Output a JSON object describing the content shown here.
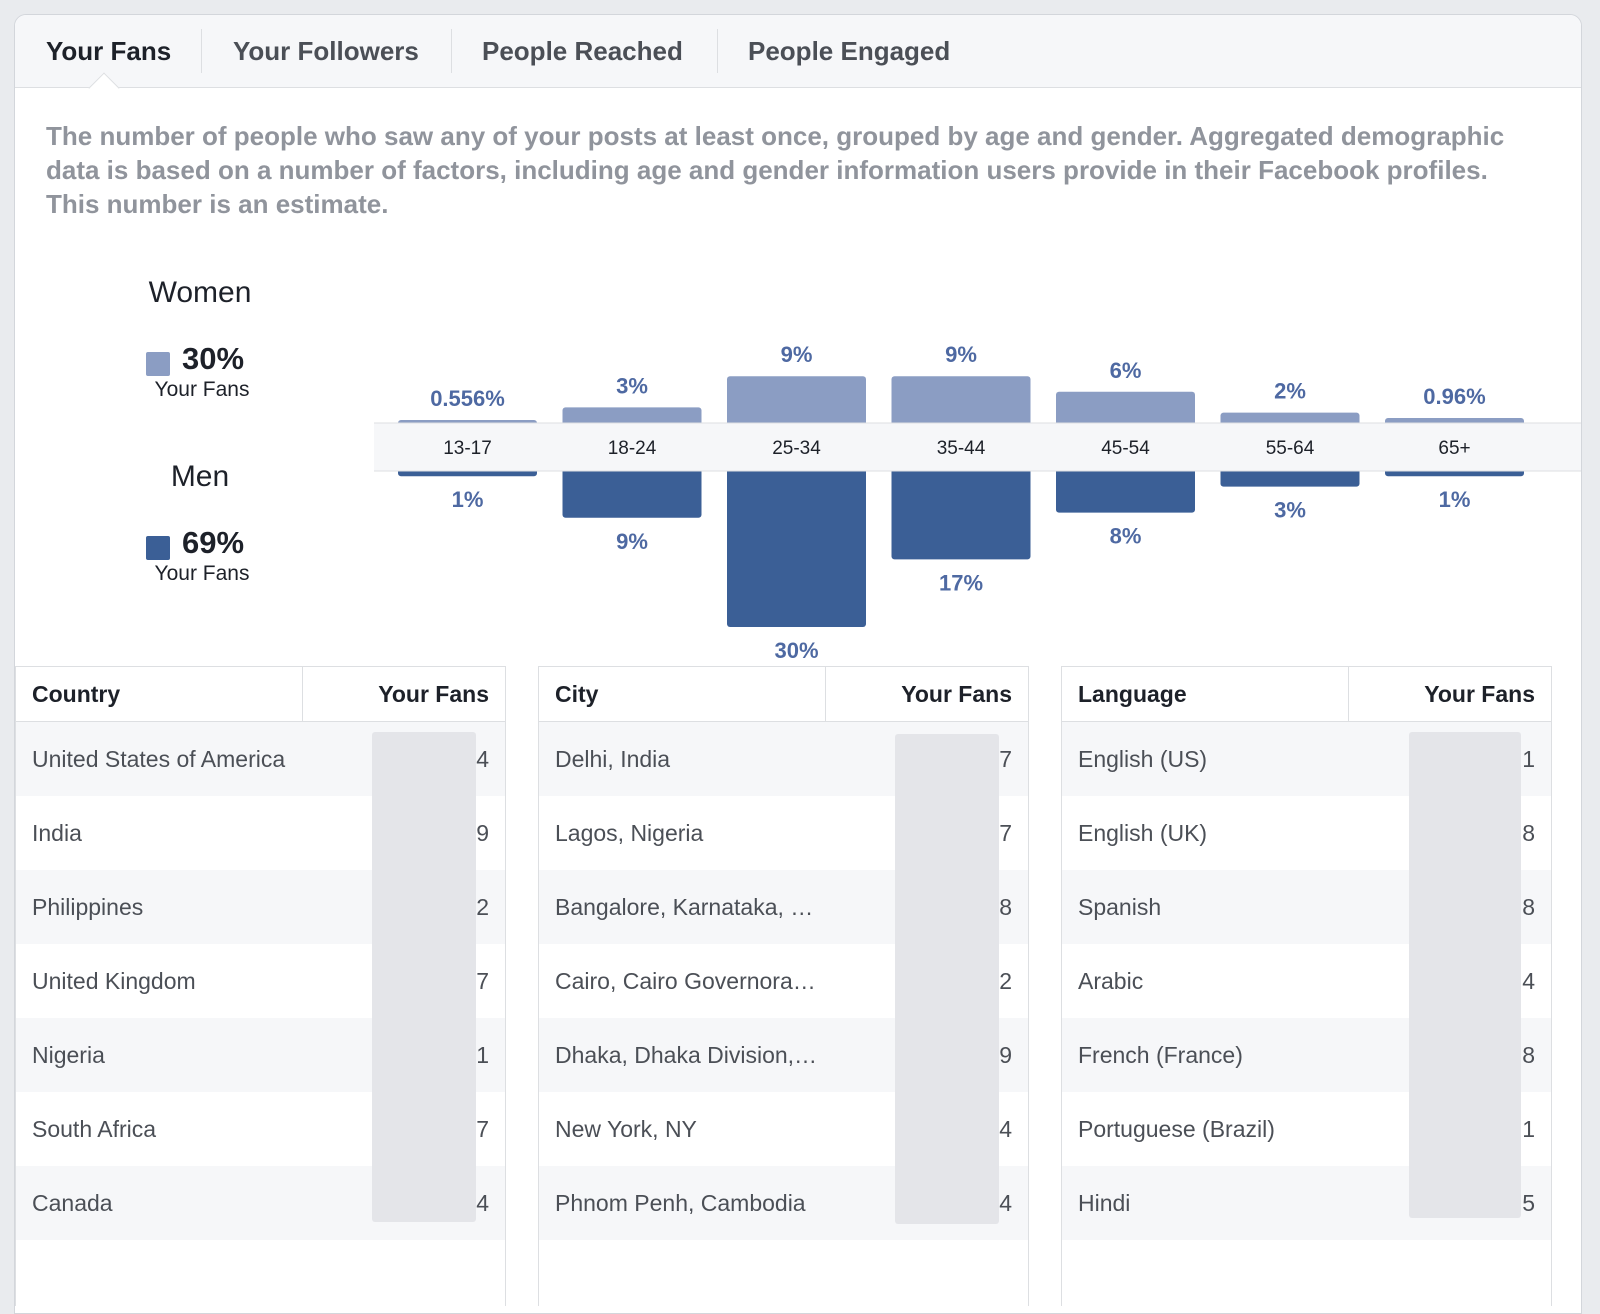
{
  "tabs": [
    {
      "label": "Your Fans",
      "active": true
    },
    {
      "label": "Your Followers",
      "active": false
    },
    {
      "label": "People Reached",
      "active": false
    },
    {
      "label": "People Engaged",
      "active": false
    }
  ],
  "description": "The number of people who saw any of your posts at least once, grouped by age and gender. Aggregated demographic data is based on a number of factors, including age and gender information users provide in their Facebook profiles. This number is an estimate.",
  "legend": {
    "women": {
      "title": "Women",
      "percent": "30%",
      "sub": "Your Fans",
      "color": "#8b9dc3"
    },
    "men": {
      "title": "Men",
      "percent": "69%",
      "sub": "Your Fans",
      "color": "#3b5f96"
    }
  },
  "chart_data": {
    "type": "bar",
    "categories": [
      "13-17",
      "18-24",
      "25-34",
      "35-44",
      "45-54",
      "55-64",
      "65+"
    ],
    "series": [
      {
        "name": "Women",
        "values": [
          0.556,
          3,
          9,
          9,
          6,
          2,
          0.96
        ],
        "labels": [
          "0.556%",
          "3%",
          "9%",
          "9%",
          "6%",
          "2%",
          "0.96%"
        ],
        "color": "#8b9dc3"
      },
      {
        "name": "Men",
        "values": [
          1,
          9,
          30,
          17,
          8,
          3,
          1
        ],
        "labels": [
          "1%",
          "9%",
          "30%",
          "17%",
          "8%",
          "3%",
          "1%"
        ],
        "color": "#3b5f96"
      }
    ],
    "label_color": "#4e69a2"
  },
  "tables": [
    {
      "col1": "Country",
      "col2": "Your Fans",
      "rows": [
        {
          "name": "United States of America",
          "value": "4"
        },
        {
          "name": "India",
          "value": "9"
        },
        {
          "name": "Philippines",
          "value": "2"
        },
        {
          "name": "United Kingdom",
          "value": "7"
        },
        {
          "name": "Nigeria",
          "value": "1"
        },
        {
          "name": "South Africa",
          "value": "7"
        },
        {
          "name": "Canada",
          "value": "4"
        }
      ]
    },
    {
      "col1": "City",
      "col2": "Your Fans",
      "rows": [
        {
          "name": "Delhi, India",
          "value": "7"
        },
        {
          "name": "Lagos, Nigeria",
          "value": "7"
        },
        {
          "name": "Bangalore, Karnataka, …",
          "value": "8"
        },
        {
          "name": "Cairo, Cairo Governora…",
          "value": "2"
        },
        {
          "name": "Dhaka, Dhaka Division,…",
          "value": "9"
        },
        {
          "name": "New York, NY",
          "value": "4"
        },
        {
          "name": "Phnom Penh, Cambodia",
          "value": "4"
        }
      ]
    },
    {
      "col1": "Language",
      "col2": "Your Fans",
      "rows": [
        {
          "name": "English (US)",
          "value": "1"
        },
        {
          "name": "English (UK)",
          "value": "8"
        },
        {
          "name": "Spanish",
          "value": "8"
        },
        {
          "name": "Arabic",
          "value": "4"
        },
        {
          "name": "French (France)",
          "value": "8"
        },
        {
          "name": "Portuguese (Brazil)",
          "value": "1"
        },
        {
          "name": "Hindi",
          "value": "5"
        }
      ]
    }
  ]
}
